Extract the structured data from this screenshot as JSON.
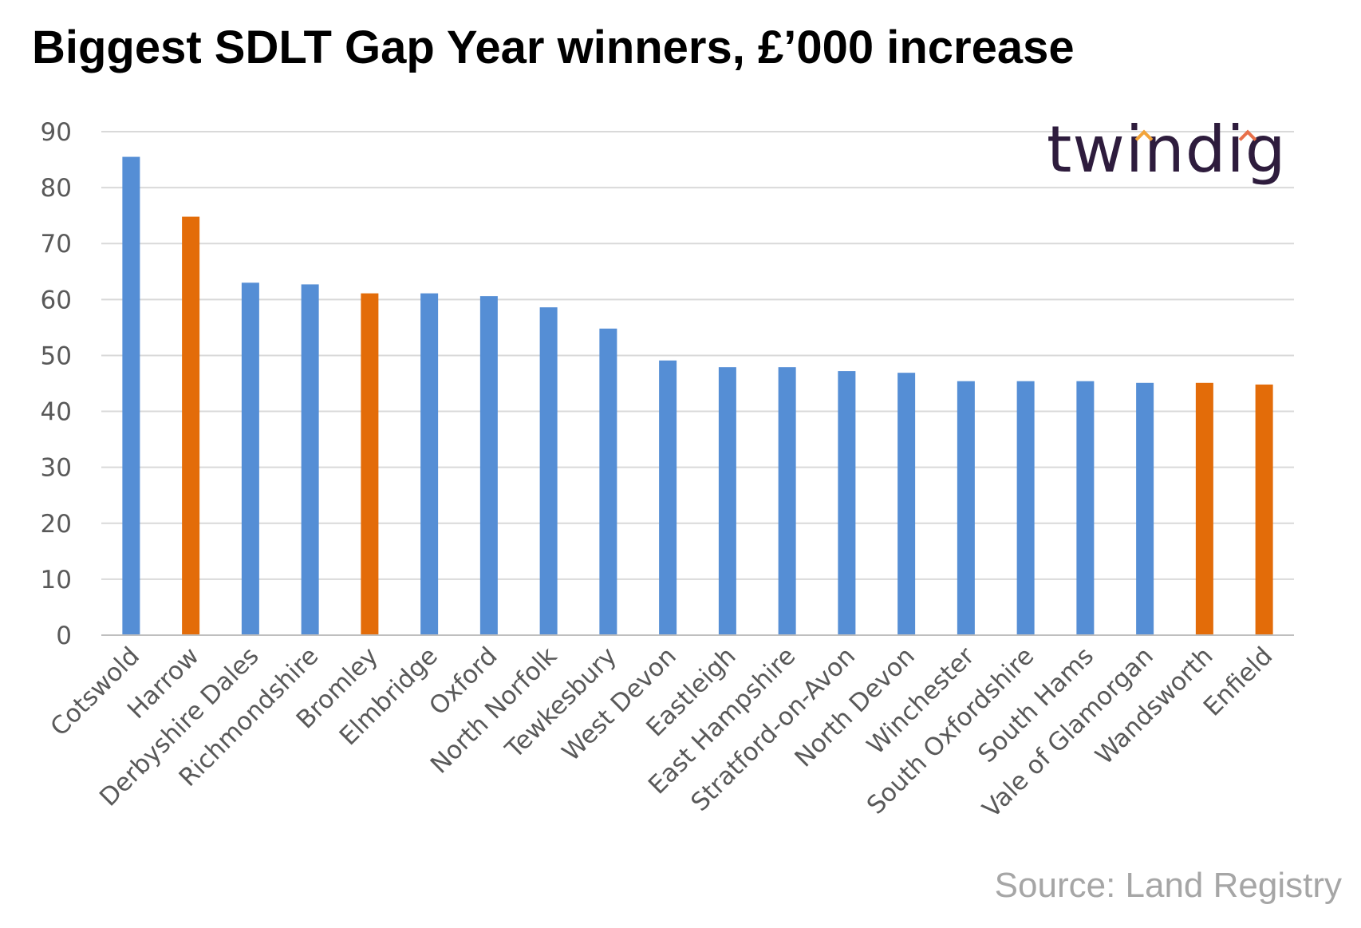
{
  "chart_data": {
    "type": "bar",
    "title": "Biggest SDLT Gap Year winners, £’000 increase",
    "xlabel": "",
    "ylabel": "",
    "ylim": [
      0,
      90
    ],
    "yticks": [
      0,
      10,
      20,
      30,
      40,
      50,
      60,
      70,
      80,
      90
    ],
    "grid": true,
    "legend": "none",
    "categories": [
      "Cotswold",
      "Harrow",
      "Derbyshire Dales",
      "Richmondshire",
      "Bromley",
      "Elmbridge",
      "Oxford",
      "North Norfolk",
      "Tewkesbury",
      "West Devon",
      "Eastleigh",
      "East Hampshire",
      "Stratford-on-Avon",
      "North Devon",
      "Winchester",
      "South Oxfordshire",
      "South Hams",
      "Vale of Glamorgan",
      "Wandsworth",
      "Enfield"
    ],
    "values": [
      85.5,
      74.8,
      63.0,
      62.7,
      61.1,
      61.1,
      60.6,
      58.6,
      54.8,
      49.1,
      47.9,
      47.9,
      47.2,
      46.9,
      45.4,
      45.4,
      45.4,
      45.1,
      45.1,
      44.8
    ],
    "bar_colors": [
      "#558ed5",
      "#e36c09",
      "#558ed5",
      "#558ed5",
      "#e36c09",
      "#558ed5",
      "#558ed5",
      "#558ed5",
      "#558ed5",
      "#558ed5",
      "#558ed5",
      "#558ed5",
      "#558ed5",
      "#558ed5",
      "#558ed5",
      "#558ed5",
      "#558ed5",
      "#558ed5",
      "#e36c09",
      "#e36c09"
    ]
  },
  "logo": {
    "text": "twindig",
    "text_color": "#2e1c3d",
    "caret_colors": [
      "#f2a43a",
      "#e8704a"
    ]
  },
  "source": "Source: Land Registry"
}
